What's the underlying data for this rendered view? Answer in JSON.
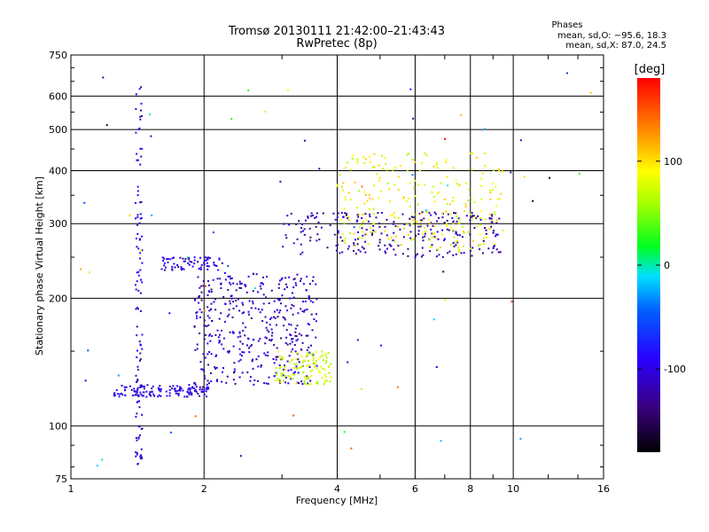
{
  "chart_data": {
    "type": "scatter",
    "title": "Tromsø 20130111 21:42:00–21:43:43",
    "subtitle": "RwPretec (8p)",
    "xlabel": "Frequency [MHz]",
    "ylabel": "Stationary phase Virtual Height [km]",
    "x_scale": "log",
    "y_scale": "log",
    "xlim": [
      1,
      16
    ],
    "ylim": [
      75,
      750
    ],
    "x_ticks": [
      1,
      2,
      4,
      6,
      8,
      10,
      16
    ],
    "x_tick_labels": [
      "1",
      "2",
      "4",
      "6",
      "8",
      "10",
      "16"
    ],
    "y_ticks": [
      75,
      100,
      200,
      300,
      400,
      500,
      600,
      750
    ],
    "y_tick_labels": [
      "75",
      "100",
      "200",
      "300",
      "400",
      "500",
      "600",
      "750"
    ],
    "grid": true,
    "phase_box": {
      "title": "Phases",
      "line_o": "mean, sd,O: −95.6, 18.3",
      "line_x": "mean, sd,X:  87.0, 24.5"
    },
    "colorbar": {
      "label": "[deg]",
      "range": [
        -180,
        180
      ],
      "ticks": [
        100,
        0,
        -100
      ],
      "tick_labels": [
        "100",
        "0",
        "-100"
      ],
      "colormap": "rainbow: black→purple→blue→cyan→green→yellow→orange→red"
    },
    "clusters": [
      {
        "name": "E-layer trace",
        "freq_range": [
          1.25,
          2.05
        ],
        "height_range": [
          117,
          125
        ],
        "phase_deg": -100
      },
      {
        "name": "F1 spread",
        "freq_range": [
          1.9,
          3.6
        ],
        "height_range": [
          125,
          230
        ],
        "phase_deg": -110
      },
      {
        "name": "F1 X-mode",
        "freq_range": [
          2.9,
          3.9
        ],
        "height_range": [
          125,
          150
        ],
        "phase_deg": 75
      },
      {
        "name": "Es/F blob",
        "freq_range": [
          1.6,
          2.2
        ],
        "height_range": [
          233,
          250
        ],
        "phase_deg": -100
      },
      {
        "name": "F2 O-trace",
        "freq_range": [
          3.0,
          9.4
        ],
        "height_range": [
          250,
          320
        ],
        "phase_deg": -120
      },
      {
        "name": "F2 X-trace",
        "freq_range": [
          4.0,
          9.5
        ],
        "height_range": [
          260,
          440
        ],
        "phase_deg": 85
      },
      {
        "name": "vertical column",
        "freq_range": [
          1.4,
          1.45
        ],
        "height_range": [
          80,
          640
        ],
        "phase_deg": -100
      }
    ]
  }
}
